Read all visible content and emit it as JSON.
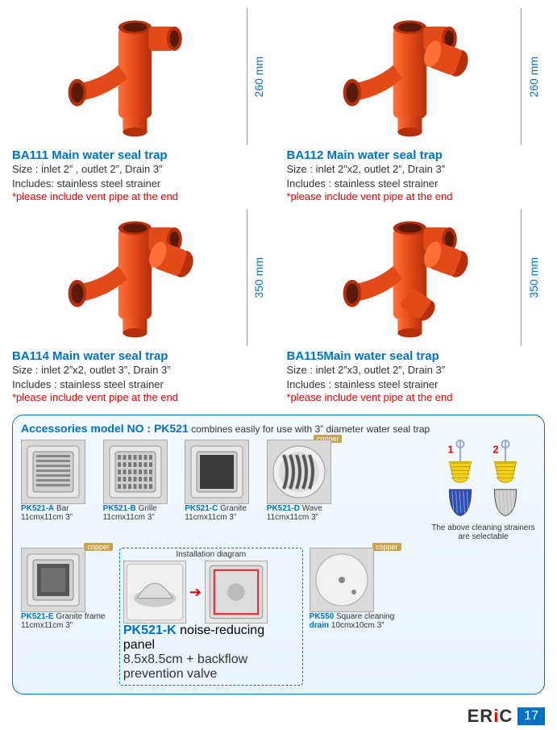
{
  "products": [
    {
      "code": "BA111",
      "title": "BA111 Main water seal trap",
      "size": "Size : inlet 2” , outlet 2”,  Drain 3”",
      "includes": "Includes: stainless steel strainer",
      "note": "*please include vent pipe at the end",
      "height": "260 mm",
      "inlets": 1
    },
    {
      "code": "BA112",
      "title": "BA112 Main water seal trap",
      "size": "Size : inlet 2”x2,  outlet 2”,  Drain 3”",
      "includes": "Includes : stainless steel strainer",
      "note": "*please include vent pipe at the end",
      "height": "260 mm",
      "inlets": 2
    },
    {
      "code": "BA114",
      "title": "BA114 Main water seal trap",
      "size": "Size : inlet 2”x2,  outlet 3”,  Drain 3”",
      "includes": "Includes : stainless steel strainer",
      "note": "*please include vent pipe at the end",
      "height": "350 mm",
      "inlets": 2
    },
    {
      "code": "BA115",
      "title": "BA115Main water seal trap",
      "size": "Size : inlet 2”x3,  outlet 2”,  Drain 3”",
      "includes": "Includes : stainless steel strainer",
      "note": "*please include vent pipe at the end",
      "height": "350 mm",
      "inlets": 3
    }
  ],
  "colors": {
    "blue": "#0072c6",
    "red": "#e30000",
    "pipe_main": "#e34a1a",
    "pipe_hi": "#ff7038",
    "pipe_sh": "#b52f0a",
    "steel": "#cfcfcf",
    "copper": "#caa24a"
  },
  "accessories_header": {
    "title": "Accessories model  NO : PK521",
    "sub": " combines easily for use with 3” diameter water seal trap"
  },
  "accessories_row1": [
    {
      "code": "PK521-A",
      "label": "Bar",
      "dim": "11cmx11cm 3”",
      "icon": "bar"
    },
    {
      "code": "PK521-B",
      "label": "Grille",
      "dim": "11cmx11cm 3”",
      "icon": "grille"
    },
    {
      "code": "PK521-C",
      "label": "Granite",
      "dim": "11cmx11cm 3”",
      "icon": "granite"
    },
    {
      "code": "PK521-D",
      "label": "Wave",
      "dim": "11cmx11cm 3”",
      "icon": "wave",
      "copper": true
    }
  ],
  "strainer_note": "The above cleaning strainers are selectable",
  "accessories_row2": {
    "granite_frame": {
      "code": "PK521-E",
      "label": "Granite frame",
      "dim": "11cmx11cm 3”",
      "copper": true
    },
    "panel": {
      "code": "PK521-K",
      "label": "noise-reducing panel",
      "dim": "8.5x8.5cm + backflow prevention valve",
      "install_label": "Installation diagram"
    },
    "square_clean": {
      "code": "PK550",
      "label": "Square cleaning",
      "label2": "drain",
      "dim": "10cmx10cm 3”",
      "copper": true
    }
  },
  "footer": {
    "logo": "ERiC",
    "page": "17"
  }
}
